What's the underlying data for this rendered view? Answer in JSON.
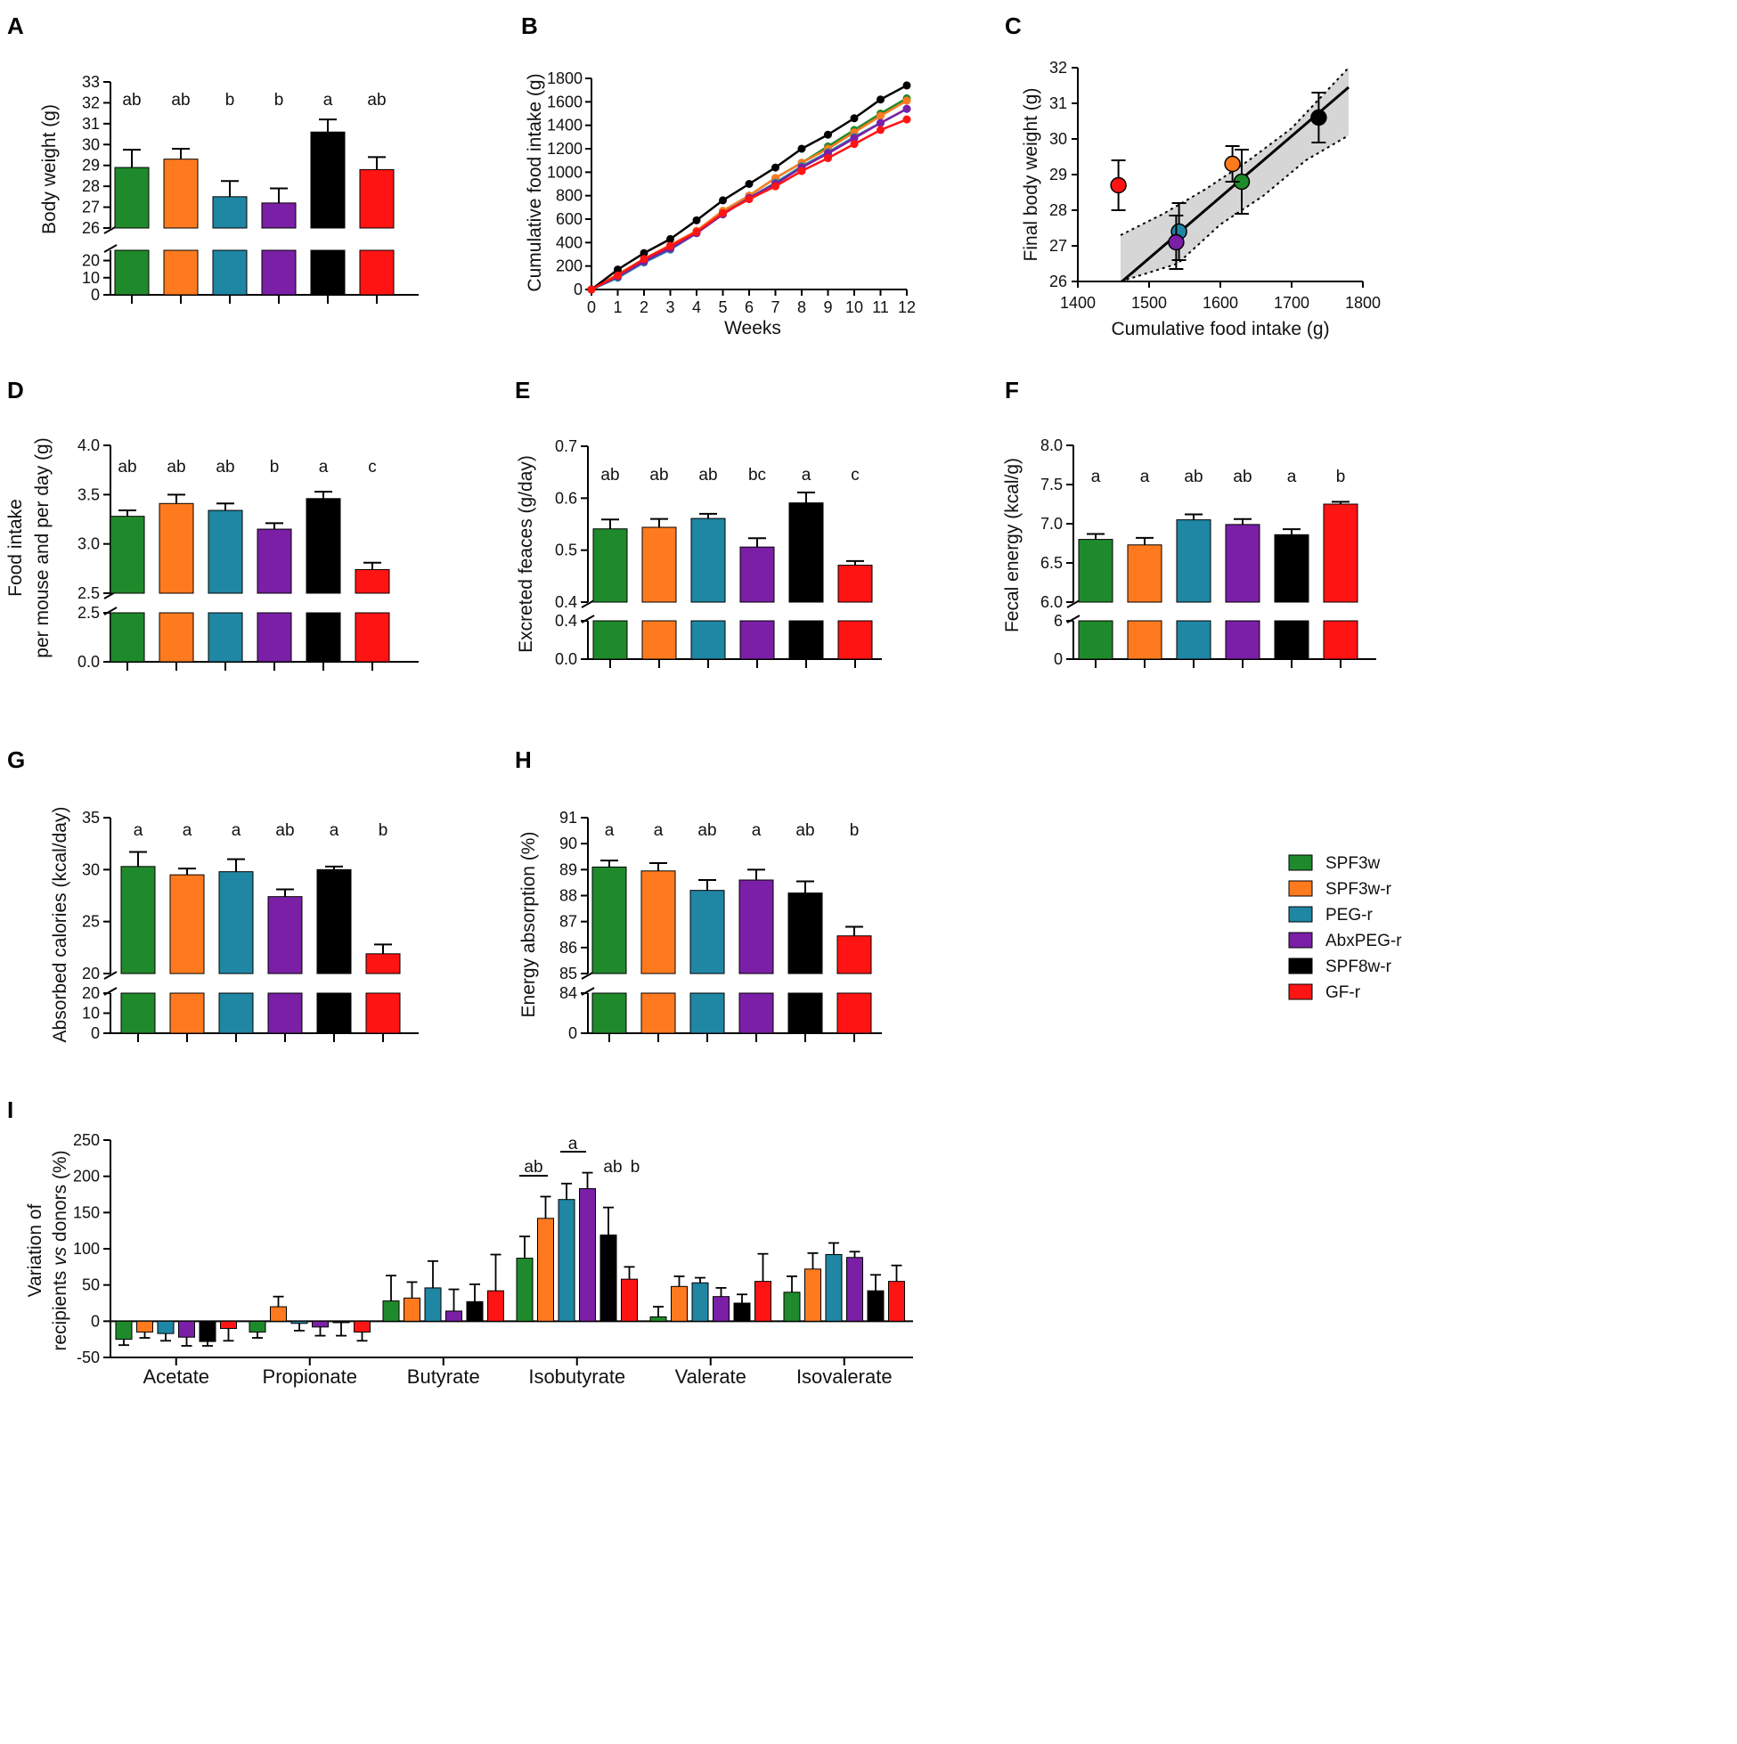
{
  "groups": [
    "SPF3w",
    "SPF3w-r",
    "PEG-r",
    "AbxPEG-r",
    "SPF8w-r",
    "GF-r"
  ],
  "colors": {
    "SPF3w": "#1f8a2b",
    "SPF3w-r": "#ff7a1f",
    "PEG-r": "#1f86a3",
    "AbxPEG-r": "#7a1fa6",
    "SPF8w-r": "#000000",
    "GF-r": "#ff1414"
  },
  "chart_data": [
    {
      "panel": "A",
      "type": "bar",
      "ylabel": "Body weight (g)",
      "upper": {
        "ylim": [
          26,
          33
        ],
        "ticks": [
          "26",
          "27",
          "28",
          "29",
          "30",
          "31",
          "32",
          "33"
        ]
      },
      "lower": {
        "ylim": [
          0,
          26
        ],
        "ticks": [
          "0",
          "10",
          "20"
        ]
      },
      "values": [
        28.9,
        29.3,
        27.5,
        27.2,
        30.6,
        28.8
      ],
      "errors": [
        0.85,
        0.5,
        0.75,
        0.7,
        0.6,
        0.6
      ],
      "letters": [
        "ab",
        "ab",
        "b",
        "b",
        "a",
        "ab"
      ]
    },
    {
      "panel": "B",
      "type": "line",
      "xlabel": "Weeks",
      "ylabel": "Cumulative food intake (g)",
      "x": [
        0,
        1,
        2,
        3,
        4,
        5,
        6,
        7,
        8,
        9,
        10,
        11,
        12
      ],
      "xticks": [
        "0",
        "1",
        "2",
        "3",
        "4",
        "5",
        "6",
        "7",
        "8",
        "9",
        "10",
        "11",
        "12"
      ],
      "ylim": [
        0,
        1800
      ],
      "yticks": [
        "0",
        "200",
        "400",
        "600",
        "800",
        "1000",
        "1200",
        "1400",
        "1600",
        "1800"
      ],
      "series": [
        {
          "name": "SPF3w",
          "values": [
            0,
            110,
            250,
            370,
            500,
            670,
            800,
            950,
            1080,
            1220,
            1360,
            1500,
            1630
          ]
        },
        {
          "name": "SPF3w-r",
          "values": [
            0,
            130,
            260,
            380,
            500,
            670,
            800,
            950,
            1080,
            1200,
            1340,
            1480,
            1610
          ]
        },
        {
          "name": "PEG-r",
          "values": [
            0,
            100,
            230,
            340,
            480,
            650,
            780,
            910,
            1050,
            1170,
            1300,
            1420,
            1540
          ]
        },
        {
          "name": "AbxPEG-r",
          "values": [
            0,
            110,
            240,
            350,
            480,
            640,
            780,
            900,
            1040,
            1160,
            1290,
            1420,
            1540
          ]
        },
        {
          "name": "SPF8w-r",
          "values": [
            0,
            170,
            310,
            430,
            590,
            760,
            900,
            1040,
            1200,
            1320,
            1460,
            1620,
            1740
          ]
        },
        {
          "name": "GF-r",
          "values": [
            0,
            120,
            260,
            370,
            490,
            650,
            770,
            880,
            1010,
            1120,
            1240,
            1360,
            1450
          ]
        }
      ]
    },
    {
      "panel": "C",
      "type": "scatter",
      "xlabel": "Cumulative food intake (g)",
      "ylabel": "Final body weight (g)",
      "xlim": [
        1400,
        1800
      ],
      "ylim": [
        26,
        32
      ],
      "xticks": [
        "1400",
        "1500",
        "1600",
        "1700",
        "1800"
      ],
      "yticks": [
        "26",
        "27",
        "28",
        "29",
        "30",
        "31",
        "32"
      ],
      "points": [
        {
          "name": "SPF3w",
          "x": 1630,
          "y": 28.8,
          "err": 0.9
        },
        {
          "name": "SPF3w-r",
          "x": 1617,
          "y": 29.3,
          "err": 0.5
        },
        {
          "name": "PEG-r",
          "x": 1542,
          "y": 27.4,
          "err": 0.8
        },
        {
          "name": "AbxPEG-r",
          "x": 1538,
          "y": 27.1,
          "err": 0.75
        },
        {
          "name": "SPF8w-r",
          "x": 1738,
          "y": 30.6,
          "err": 0.7
        },
        {
          "name": "GF-r",
          "x": 1457,
          "y": 28.7,
          "err": 0.7
        }
      ],
      "fit_line": {
        "x": [
          1462,
          1780
        ],
        "y": [
          26.0,
          31.45
        ]
      },
      "ci_upper": {
        "x": [
          1460,
          1520,
          1580,
          1640,
          1700,
          1780
        ],
        "y": [
          27.3,
          27.9,
          28.6,
          29.4,
          30.3,
          32.0
        ]
      },
      "ci_lower": {
        "x": [
          1460,
          1540,
          1600,
          1660,
          1720,
          1780
        ],
        "y": [
          25.6,
          26.5,
          27.6,
          28.4,
          29.4,
          30.1
        ]
      }
    },
    {
      "panel": "D",
      "type": "bar",
      "ylabel": "Food intake",
      "ylabel2": "per mouse and per day (g)",
      "upper": {
        "ylim": [
          2.5,
          4.0
        ],
        "ticks": [
          "2.5",
          "3.0",
          "3.5",
          "4.0"
        ]
      },
      "lower": {
        "ylim": [
          0,
          2.5
        ],
        "ticks": [
          "0.0",
          "2.5"
        ]
      },
      "values": [
        3.28,
        3.41,
        3.34,
        3.15,
        3.46,
        2.74
      ],
      "errors": [
        0.06,
        0.09,
        0.07,
        0.06,
        0.07,
        0.07
      ],
      "letters": [
        "ab",
        "ab",
        "ab",
        "b",
        "a",
        "c"
      ]
    },
    {
      "panel": "E",
      "type": "bar",
      "ylabel": "Excreted feaces (g/day)",
      "upper": {
        "ylim": [
          0.4,
          0.7
        ],
        "ticks": [
          "0.4",
          "0.5",
          "0.6",
          "0.7"
        ]
      },
      "lower": {
        "ylim": [
          0,
          0.4
        ],
        "ticks": [
          "0.0",
          "0.4"
        ]
      },
      "values": [
        0.541,
        0.544,
        0.561,
        0.506,
        0.591,
        0.471
      ],
      "errors": [
        0.018,
        0.016,
        0.009,
        0.017,
        0.02,
        0.008
      ],
      "letters": [
        "ab",
        "ab",
        "ab",
        "bc",
        "a",
        "c"
      ]
    },
    {
      "panel": "F",
      "type": "bar",
      "ylabel": "Fecal energy  (kcal/g)",
      "upper": {
        "ylim": [
          6.0,
          8.0
        ],
        "ticks": [
          "6.0",
          "6.5",
          "7.0",
          "7.5",
          "8.0"
        ]
      },
      "lower": {
        "ylim": [
          0,
          6
        ],
        "ticks": [
          "0",
          "6"
        ]
      },
      "values": [
        6.8,
        6.73,
        7.05,
        6.99,
        6.86,
        7.25
      ],
      "errors": [
        0.07,
        0.09,
        0.07,
        0.07,
        0.07,
        0.03
      ],
      "letters": [
        "a",
        "a",
        "ab",
        "ab",
        "a",
        "b"
      ]
    },
    {
      "panel": "G",
      "type": "bar",
      "ylabel": "Absorbed calories (kcal/day)",
      "upper": {
        "ylim": [
          20,
          35
        ],
        "ticks": [
          "20",
          "25",
          "30",
          "35"
        ]
      },
      "lower": {
        "ylim": [
          0,
          20
        ],
        "ticks": [
          "0",
          "10",
          "20"
        ]
      },
      "values": [
        30.3,
        29.5,
        29.8,
        27.4,
        30.0,
        21.9
      ],
      "errors": [
        1.4,
        0.6,
        1.2,
        0.7,
        0.3,
        0.9
      ],
      "letters": [
        "a",
        "a",
        "a",
        "ab",
        "a",
        "b"
      ]
    },
    {
      "panel": "H",
      "type": "bar",
      "ylabel": "Energy absorption (%)",
      "upper": {
        "ylim": [
          85,
          91
        ],
        "ticks": [
          "85",
          "86",
          "87",
          "88",
          "89",
          "90",
          "91"
        ]
      },
      "lower": {
        "ylim": [
          0,
          84
        ],
        "ticks": [
          "0",
          "84"
        ]
      },
      "values": [
        89.1,
        88.95,
        88.2,
        88.6,
        88.1,
        86.45
      ],
      "errors": [
        0.25,
        0.3,
        0.4,
        0.4,
        0.45,
        0.35
      ],
      "letters": [
        "a",
        "a",
        "ab",
        "a",
        "ab",
        "b"
      ]
    },
    {
      "panel": "I",
      "type": "bar",
      "ylabel": "Variation of",
      "ylabel2": "recipients vs donors (%)",
      "ylim": [
        -50,
        250
      ],
      "yticks": [
        "-50",
        "0",
        "50",
        "100",
        "150",
        "200",
        "250"
      ],
      "categories": [
        "Acetate",
        "Propionate",
        "Butyrate",
        "Isobutyrate",
        "Valerate",
        "Isovalerate"
      ],
      "series": [
        {
          "name": "SPF3w",
          "values": [
            -25,
            -15,
            28,
            87,
            6,
            40
          ],
          "errors": [
            8,
            8,
            35,
            30,
            14,
            22
          ]
        },
        {
          "name": "SPF3w-r",
          "values": [
            -15,
            20,
            32,
            142,
            48,
            72
          ],
          "errors": [
            8,
            14,
            22,
            30,
            14,
            22
          ]
        },
        {
          "name": "PEG-r",
          "values": [
            -17,
            -3,
            46,
            168,
            53,
            92
          ],
          "errors": [
            10,
            10,
            37,
            22,
            7,
            16
          ]
        },
        {
          "name": "AbxPEG-r",
          "values": [
            -22,
            -8,
            14,
            183,
            34,
            88
          ],
          "errors": [
            12,
            12,
            30,
            22,
            12,
            8
          ]
        },
        {
          "name": "SPF8w-r",
          "values": [
            -28,
            -2,
            27,
            119,
            25,
            42
          ],
          "errors": [
            6,
            18,
            24,
            38,
            12,
            22
          ]
        },
        {
          "name": "GF-r",
          "values": [
            -10,
            -15,
            42,
            58,
            55,
            55
          ],
          "errors": [
            17,
            12,
            50,
            17,
            38,
            22
          ]
        }
      ],
      "annotations": [
        "ab",
        "a",
        "ab",
        "b"
      ]
    }
  ]
}
